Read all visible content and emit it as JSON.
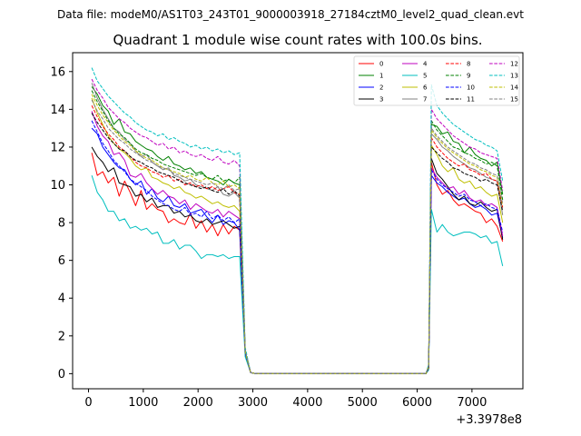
{
  "header": {
    "data_file": "Data file: modeM0/AS1T03_243T01_9000003918_27184cztM0_level2_quad_clean.evt"
  },
  "chart_data": {
    "type": "line",
    "title": "Quadrant 1 module wise count rates with 100.0s bins.",
    "xlabel": "",
    "ylabel": "",
    "x_offset_label": "+3.3978e8",
    "xlim": [
      -290,
      7930
    ],
    "ylim": [
      -0.8,
      17.0
    ],
    "x_ticks": [
      0,
      1000,
      2000,
      3000,
      4000,
      5000,
      6000,
      7000
    ],
    "y_ticks": [
      0,
      2,
      4,
      6,
      8,
      10,
      12,
      14,
      16
    ],
    "x_tick_labels": [
      "0",
      "1000",
      "2000",
      "3000",
      "4000",
      "5000",
      "6000",
      "7000"
    ],
    "y_tick_labels": [
      "0",
      "2",
      "4",
      "6",
      "8",
      "10",
      "12",
      "14",
      "16"
    ],
    "legend_position": "top-right",
    "segments": [
      {
        "x_start": 60,
        "x_end": 2760,
        "step": 100
      },
      {
        "x_start": 6260,
        "x_end": 7560,
        "step": 100
      }
    ],
    "gap_x": [
      2860,
      2960,
      3060,
      6160,
      6210
    ],
    "series": [
      {
        "name": "0",
        "color": "#ff0000",
        "dash": "solid",
        "seg1": [
          11.7,
          10.5,
          10.7,
          10.1,
          10.4,
          9.4,
          10.2,
          9.6,
          8.9,
          9.7,
          8.7,
          9.0,
          8.7,
          8.6,
          8.0,
          8.2,
          8.0,
          7.9,
          8.5,
          7.7,
          8.1,
          7.5,
          7.9,
          7.3,
          7.9,
          7.4,
          7.8,
          7.6
        ],
        "gap": [
          1.0,
          0.05,
          0.0,
          0.0,
          0.3
        ],
        "seg2": [
          11.2,
          10.0,
          9.5,
          9.7,
          9.2,
          8.9,
          9.0,
          8.8,
          8.6,
          8.5,
          8.0,
          8.2,
          7.8,
          7.0
        ]
      },
      {
        "name": "1",
        "color": "#008000",
        "dash": "solid",
        "seg1": [
          15.2,
          14.8,
          14.2,
          13.9,
          13.2,
          13.5,
          12.8,
          12.7,
          12.3,
          12.1,
          11.9,
          11.8,
          11.5,
          11.3,
          11.5,
          11.1,
          11.0,
          10.8,
          10.9,
          10.6,
          10.7,
          10.4,
          10.3,
          10.2,
          10.0,
          10.3,
          10.1,
          10.0
        ],
        "gap": [
          1.2,
          0.05,
          0.0,
          0.0,
          0.4
        ],
        "seg2": [
          13.2,
          13.1,
          12.7,
          12.8,
          12.3,
          12.2,
          11.7,
          12.0,
          11.6,
          11.4,
          11.3,
          11.0,
          11.2,
          9.5
        ]
      },
      {
        "name": "2",
        "color": "#0000ff",
        "dash": "solid",
        "seg1": [
          13.0,
          12.7,
          12.0,
          11.6,
          11.2,
          10.9,
          10.8,
          10.3,
          10.0,
          10.2,
          9.5,
          9.8,
          9.3,
          9.1,
          9.4,
          8.9,
          8.8,
          9.0,
          8.5,
          8.6,
          8.7,
          8.3,
          8.0,
          8.4,
          7.9,
          8.1,
          8.0,
          7.6
        ],
        "gap": [
          1.1,
          0.05,
          0.0,
          0.0,
          0.3
        ],
        "seg2": [
          10.5,
          10.1,
          9.9,
          9.6,
          9.4,
          9.2,
          9.3,
          9.0,
          8.8,
          8.9,
          8.7,
          8.4,
          8.5,
          7.2
        ]
      },
      {
        "name": "3",
        "color": "#000000",
        "dash": "solid",
        "seg1": [
          12.0,
          11.5,
          11.2,
          10.7,
          10.9,
          10.1,
          10.0,
          9.9,
          9.4,
          9.5,
          9.1,
          9.3,
          8.8,
          8.9,
          8.9,
          8.5,
          8.6,
          8.3,
          8.4,
          8.1,
          8.0,
          8.2,
          7.9,
          8.0,
          8.1,
          7.9,
          7.7,
          7.8
        ],
        "gap": [
          1.1,
          0.05,
          0.0,
          0.0,
          0.3
        ],
        "seg2": [
          11.4,
          10.6,
          10.3,
          9.9,
          9.5,
          9.2,
          9.4,
          9.0,
          8.9,
          9.1,
          8.8,
          8.6,
          8.7,
          7.1
        ]
      },
      {
        "name": "4",
        "color": "#bf00bf",
        "dash": "solid",
        "seg1": [
          13.9,
          13.1,
          12.6,
          12.3,
          11.6,
          11.7,
          11.3,
          10.5,
          10.4,
          10.6,
          10.1,
          9.8,
          9.5,
          9.7,
          9.4,
          9.3,
          9.0,
          9.2,
          8.7,
          9.0,
          8.8,
          8.6,
          8.5,
          8.7,
          8.3,
          8.6,
          8.4,
          8.2
        ],
        "gap": [
          1.1,
          0.05,
          0.0,
          0.0,
          0.3
        ],
        "seg2": [
          10.9,
          10.4,
          10.1,
          9.8,
          9.9,
          9.5,
          9.7,
          9.3,
          9.1,
          9.2,
          8.9,
          9.0,
          8.8,
          7.3
        ]
      },
      {
        "name": "5",
        "color": "#00bfbf",
        "dash": "solid",
        "seg1": [
          10.5,
          9.6,
          9.2,
          8.6,
          8.6,
          8.1,
          8.2,
          7.7,
          7.8,
          7.6,
          7.7,
          7.4,
          7.5,
          6.9,
          6.9,
          7.1,
          6.6,
          6.8,
          6.8,
          6.5,
          6.1,
          6.3,
          6.3,
          6.2,
          6.3,
          6.1,
          6.2,
          6.2
        ],
        "gap": [
          0.9,
          0.05,
          0.0,
          0.0,
          0.2
        ],
        "seg2": [
          8.7,
          7.5,
          7.9,
          7.5,
          7.3,
          7.4,
          7.5,
          7.5,
          7.4,
          7.2,
          7.3,
          6.9,
          7.0,
          5.7
        ]
      },
      {
        "name": "6",
        "color": "#bfbf00",
        "dash": "solid",
        "seg1": [
          14.6,
          13.8,
          13.2,
          12.6,
          12.2,
          11.9,
          11.7,
          11.4,
          11.0,
          10.8,
          10.9,
          10.4,
          10.3,
          10.1,
          10.0,
          9.8,
          9.9,
          9.6,
          9.5,
          9.3,
          9.4,
          9.2,
          9.0,
          9.1,
          8.9,
          8.8,
          8.9,
          8.6
        ],
        "gap": [
          1.1,
          0.05,
          0.0,
          0.0,
          0.3
        ],
        "seg2": [
          12.1,
          11.6,
          11.0,
          10.7,
          10.9,
          10.3,
          10.1,
          10.2,
          9.8,
          9.9,
          9.6,
          9.4,
          9.5,
          8.0
        ]
      },
      {
        "name": "7",
        "color": "#808080",
        "dash": "solid",
        "seg1": [
          15.4,
          14.6,
          14.0,
          13.5,
          13.0,
          12.8,
          12.4,
          12.2,
          11.8,
          11.5,
          11.6,
          11.2,
          11.0,
          10.8,
          10.9,
          10.5,
          10.4,
          10.2,
          10.3,
          10.0,
          9.9,
          9.8,
          9.7,
          9.9,
          9.5,
          9.4,
          9.6,
          9.3
        ],
        "gap": [
          1.2,
          0.05,
          0.0,
          0.0,
          0.4
        ],
        "seg2": [
          12.7,
          12.4,
          12.0,
          11.8,
          11.5,
          11.3,
          11.1,
          10.9,
          10.8,
          10.6,
          10.4,
          10.3,
          10.2,
          8.4
        ]
      },
      {
        "name": "8",
        "color": "#ff0000",
        "dash": "dashed",
        "seg1": [
          14.2,
          13.6,
          13.1,
          12.7,
          12.4,
          12.0,
          11.8,
          11.5,
          11.2,
          11.0,
          10.9,
          10.7,
          10.6,
          10.4,
          10.5,
          10.2,
          10.3,
          10.0,
          10.1,
          9.9,
          10.0,
          9.8,
          9.9,
          9.7,
          9.8,
          9.9,
          9.6,
          9.5
        ],
        "gap": [
          1.2,
          0.05,
          0.0,
          0.0,
          0.4
        ],
        "seg2": [
          12.5,
          12.0,
          11.7,
          11.4,
          11.2,
          11.0,
          11.1,
          10.8,
          10.7,
          10.5,
          10.6,
          10.3,
          10.2,
          8.8
        ]
      },
      {
        "name": "9",
        "color": "#008000",
        "dash": "dashed",
        "seg1": [
          15.0,
          14.4,
          13.9,
          13.4,
          13.0,
          12.7,
          12.5,
          12.2,
          11.9,
          11.7,
          11.6,
          11.4,
          11.3,
          11.1,
          11.0,
          10.9,
          10.8,
          10.7,
          10.6,
          10.5,
          10.6,
          10.4,
          10.3,
          10.5,
          10.2,
          10.3,
          10.1,
          10.4
        ],
        "gap": [
          1.2,
          0.05,
          0.0,
          0.0,
          0.4
        ],
        "seg2": [
          13.4,
          12.9,
          12.6,
          12.3,
          12.0,
          11.9,
          11.7,
          11.6,
          11.4,
          11.3,
          11.1,
          11.2,
          11.0,
          9.2
        ]
      },
      {
        "name": "10",
        "color": "#0000ff",
        "dash": "dashed",
        "seg1": [
          13.4,
          12.8,
          12.2,
          11.8,
          11.3,
          11.0,
          10.7,
          10.3,
          10.1,
          9.9,
          9.7,
          9.4,
          9.2,
          9.0,
          8.9,
          8.7,
          8.6,
          8.8,
          8.4,
          8.5,
          8.3,
          8.6,
          8.2,
          8.4,
          8.1,
          8.3,
          8.0,
          8.2
        ],
        "gap": [
          1.1,
          0.05,
          0.0,
          0.0,
          0.3
        ],
        "seg2": [
          10.8,
          10.3,
          10.0,
          9.8,
          9.6,
          9.4,
          9.5,
          9.2,
          9.1,
          8.9,
          9.0,
          8.8,
          8.7,
          7.5
        ]
      },
      {
        "name": "11",
        "color": "#000000",
        "dash": "dashed",
        "seg1": [
          13.8,
          13.3,
          12.9,
          12.5,
          12.2,
          11.9,
          11.8,
          11.5,
          11.3,
          11.2,
          11.0,
          10.9,
          10.7,
          10.6,
          10.5,
          10.4,
          10.2,
          10.1,
          10.0,
          9.9,
          9.8,
          9.9,
          9.7,
          9.6,
          9.8,
          9.5,
          9.7,
          9.4
        ],
        "gap": [
          1.2,
          0.05,
          0.0,
          0.0,
          0.3
        ],
        "seg2": [
          12.0,
          11.7,
          11.4,
          11.2,
          10.9,
          10.8,
          10.6,
          10.5,
          10.4,
          10.2,
          10.3,
          10.1,
          10.0,
          8.6
        ]
      },
      {
        "name": "12",
        "color": "#bf00bf",
        "dash": "dashed",
        "seg1": [
          15.6,
          15.0,
          14.6,
          14.1,
          13.8,
          13.5,
          13.3,
          13.0,
          12.8,
          12.6,
          12.5,
          12.3,
          12.1,
          12.2,
          11.9,
          12.0,
          11.7,
          11.8,
          11.6,
          11.5,
          11.6,
          11.4,
          11.3,
          11.5,
          11.2,
          11.1,
          11.3,
          11.0
        ],
        "gap": [
          1.3,
          0.05,
          0.0,
          0.0,
          0.4
        ],
        "seg2": [
          14.0,
          13.5,
          13.2,
          12.9,
          12.6,
          12.4,
          12.2,
          12.0,
          11.9,
          11.7,
          11.6,
          11.5,
          11.4,
          9.7
        ]
      },
      {
        "name": "13",
        "color": "#00bfbf",
        "dash": "dashed",
        "seg1": [
          16.2,
          15.5,
          15.1,
          14.7,
          14.4,
          14.1,
          13.8,
          13.6,
          13.3,
          13.1,
          12.9,
          12.8,
          12.6,
          12.7,
          12.4,
          12.5,
          12.3,
          12.2,
          12.0,
          12.1,
          11.9,
          12.0,
          11.8,
          11.9,
          11.7,
          11.8,
          11.6,
          11.7
        ],
        "gap": [
          1.4,
          0.05,
          0.0,
          0.0,
          0.5
        ],
        "seg2": [
          15.3,
          14.2,
          13.8,
          13.5,
          13.2,
          13.0,
          12.8,
          12.6,
          12.4,
          12.3,
          12.1,
          12.0,
          11.8,
          10.2
        ]
      },
      {
        "name": "14",
        "color": "#bfbf00",
        "dash": "dashed",
        "seg1": [
          14.8,
          14.2,
          13.7,
          13.3,
          12.9,
          12.6,
          12.3,
          12.1,
          11.8,
          11.6,
          11.4,
          11.3,
          11.1,
          10.9,
          10.8,
          10.7,
          10.6,
          10.4,
          10.5,
          10.3,
          10.2,
          10.4,
          10.1,
          10.0,
          10.2,
          9.9,
          10.0,
          9.8
        ],
        "gap": [
          1.2,
          0.05,
          0.0,
          0.0,
          0.4
        ],
        "seg2": [
          12.9,
          12.5,
          12.2,
          11.9,
          11.7,
          11.5,
          11.3,
          11.1,
          11.0,
          10.8,
          10.7,
          10.5,
          10.4,
          8.9
        ]
      },
      {
        "name": "15",
        "color": "#808080",
        "dash": "dashed",
        "seg1": [
          14.5,
          13.9,
          13.5,
          13.0,
          12.7,
          12.4,
          12.2,
          11.9,
          11.7,
          11.5,
          11.3,
          11.2,
          11.0,
          10.9,
          10.8,
          10.6,
          10.5,
          10.4,
          10.3,
          10.2,
          10.1,
          10.0,
          10.1,
          9.9,
          9.8,
          10.0,
          9.7,
          9.8
        ],
        "gap": [
          1.2,
          0.05,
          0.0,
          0.0,
          0.4
        ],
        "seg2": [
          13.0,
          12.6,
          12.3,
          12.0,
          11.8,
          11.6,
          11.4,
          11.2,
          11.1,
          10.9,
          10.8,
          10.6,
          10.5,
          9.0
        ]
      }
    ]
  }
}
